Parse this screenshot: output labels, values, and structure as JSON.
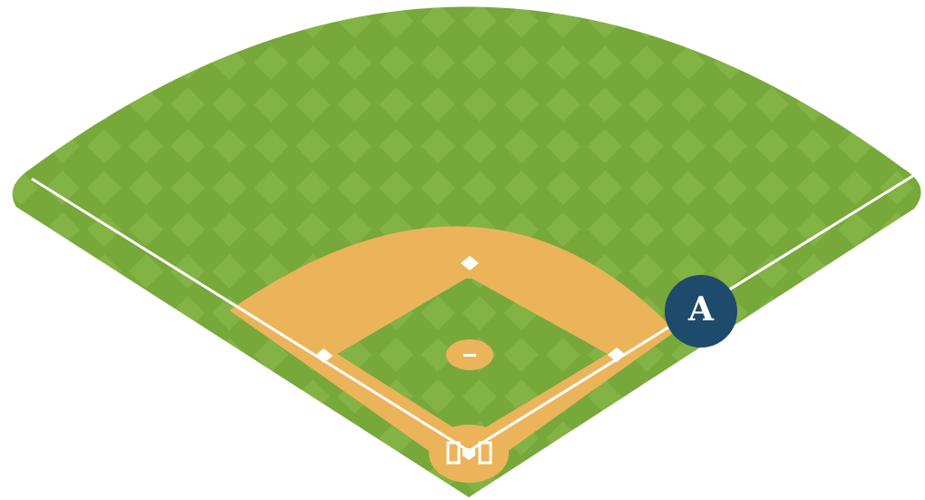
{
  "marker": {
    "label": "A"
  }
}
